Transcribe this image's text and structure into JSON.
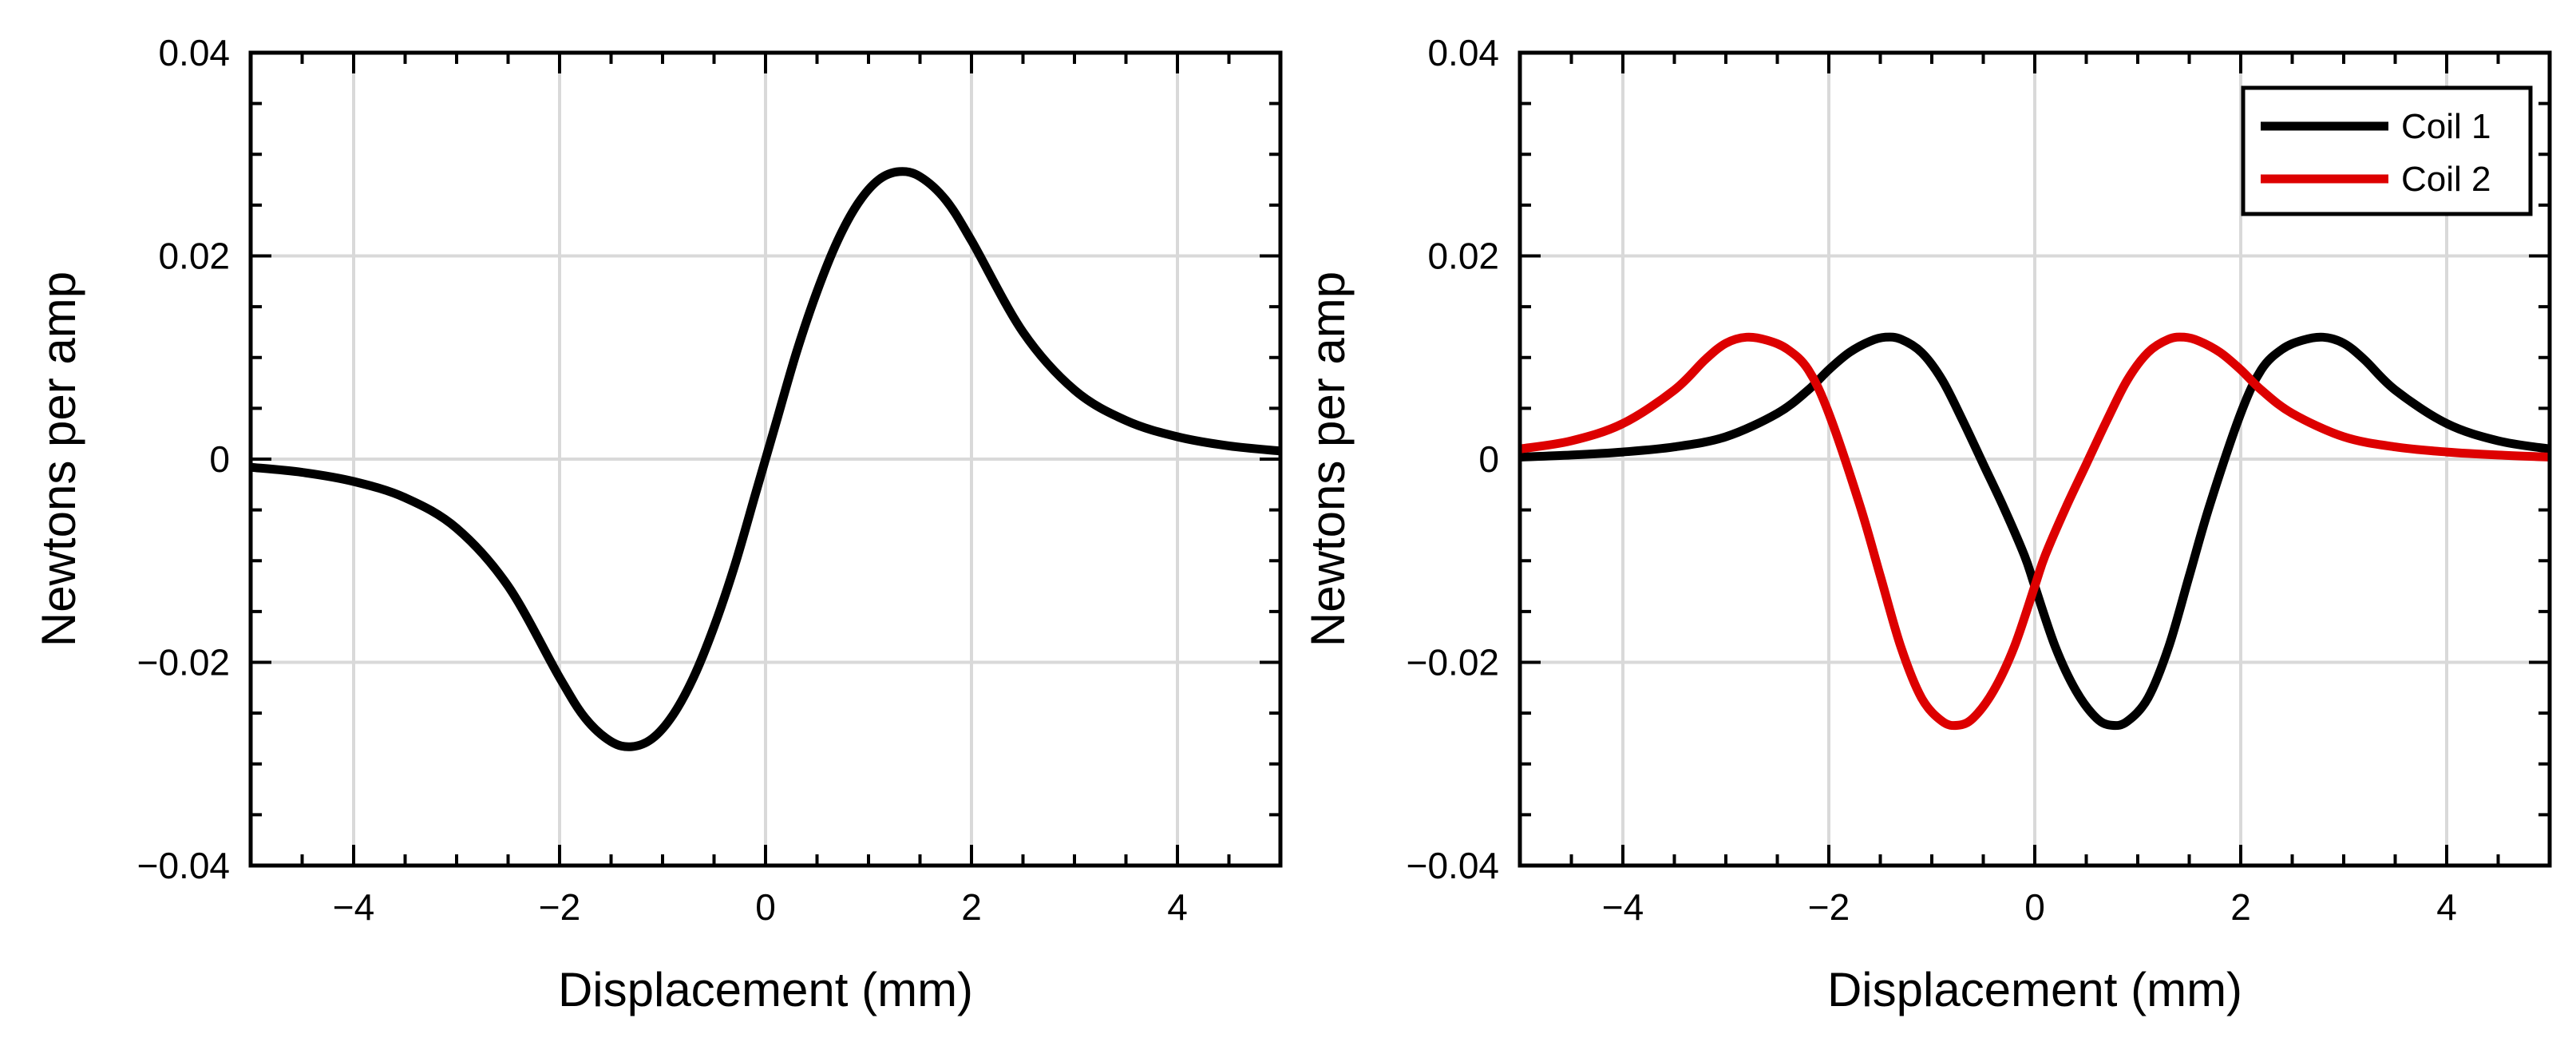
{
  "chart_data": [
    {
      "type": "line",
      "title": "",
      "xlabel": "Displacement (mm)",
      "ylabel": "Newtons per amp",
      "xlim": [
        -5,
        5
      ],
      "ylim": [
        -0.04,
        0.04
      ],
      "xticks": [
        -4,
        -2,
        0,
        2,
        4
      ],
      "xtick_labels": [
        "−4",
        "−2",
        "0",
        "2",
        "4"
      ],
      "yticks": [
        -0.04,
        -0.02,
        0,
        0.02,
        0.04
      ],
      "ytick_labels": [
        "−0.04",
        "−0.02",
        "0",
        "0.02",
        "0.04"
      ],
      "grid": true,
      "legend": null,
      "series": [
        {
          "name": "",
          "color": "#000000",
          "x": [
            -5.0,
            -4.5,
            -4.0,
            -3.5,
            -3.0,
            -2.5,
            -2.0,
            -1.75,
            -1.5,
            -1.3,
            -1.1,
            -0.9,
            -0.7,
            -0.5,
            -0.3,
            -0.1,
            0.0,
            0.1,
            0.3,
            0.5,
            0.7,
            0.9,
            1.1,
            1.3,
            1.5,
            1.75,
            2.0,
            2.5,
            3.0,
            3.5,
            4.0,
            4.5,
            5.0
          ],
          "y": [
            -0.0008,
            -0.0013,
            -0.0022,
            -0.0038,
            -0.0068,
            -0.0125,
            -0.0215,
            -0.0255,
            -0.0278,
            -0.0283,
            -0.0275,
            -0.0252,
            -0.0215,
            -0.0165,
            -0.0105,
            -0.0035,
            0.0,
            0.0035,
            0.0105,
            0.0165,
            0.0215,
            0.0252,
            0.0275,
            0.0283,
            0.0278,
            0.0255,
            0.0215,
            0.0125,
            0.0068,
            0.0038,
            0.0022,
            0.0013,
            0.0008
          ]
        }
      ]
    },
    {
      "type": "line",
      "title": "",
      "xlabel": "Displacement (mm)",
      "ylabel": "Newtons per amp",
      "xlim": [
        -5,
        5
      ],
      "ylim": [
        -0.04,
        0.04
      ],
      "xticks": [
        -4,
        -2,
        0,
        2,
        4
      ],
      "xtick_labels": [
        "−4",
        "−2",
        "0",
        "2",
        "4"
      ],
      "yticks": [
        -0.04,
        -0.02,
        0,
        0.02,
        0.04
      ],
      "ytick_labels": [
        "−0.04",
        "−0.02",
        "0",
        "0.02",
        "0.04"
      ],
      "grid": true,
      "legend": "top-right",
      "series": [
        {
          "name": "Coil 1",
          "color": "#000000",
          "x": [
            -5.0,
            -4.5,
            -4.0,
            -3.5,
            -3.0,
            -2.5,
            -2.2,
            -2.0,
            -1.8,
            -1.6,
            -1.45,
            -1.3,
            -1.1,
            -0.9,
            -0.7,
            -0.5,
            -0.3,
            -0.1,
            0.0,
            0.2,
            0.4,
            0.6,
            0.75,
            0.9,
            1.1,
            1.3,
            1.5,
            1.7,
            2.0,
            2.2,
            2.4,
            2.6,
            2.8,
            3.0,
            3.2,
            3.5,
            4.0,
            4.5,
            5.0
          ],
          "y": [
            0.0002,
            0.0004,
            0.0007,
            0.0012,
            0.0022,
            0.0045,
            0.0068,
            0.0088,
            0.0105,
            0.0116,
            0.012,
            0.0118,
            0.0105,
            0.0078,
            0.0038,
            -0.0005,
            -0.0048,
            -0.0095,
            -0.0125,
            -0.0185,
            -0.0228,
            -0.0255,
            -0.0262,
            -0.0258,
            -0.0235,
            -0.0185,
            -0.0115,
            -0.0045,
            0.0045,
            0.0088,
            0.0108,
            0.0117,
            0.012,
            0.0114,
            0.0098,
            0.0068,
            0.0035,
            0.0018,
            0.001
          ]
        },
        {
          "name": "Coil 2",
          "color": "#dd0000",
          "x": [
            -5.0,
            -4.5,
            -4.0,
            -3.5,
            -3.2,
            -3.0,
            -2.8,
            -2.6,
            -2.4,
            -2.2,
            -2.0,
            -1.7,
            -1.5,
            -1.3,
            -1.1,
            -0.9,
            -0.75,
            -0.6,
            -0.4,
            -0.2,
            0.0,
            0.1,
            0.3,
            0.5,
            0.7,
            0.9,
            1.1,
            1.3,
            1.45,
            1.6,
            1.8,
            2.0,
            2.2,
            2.5,
            3.0,
            3.5,
            4.0,
            4.5,
            5.0
          ],
          "y": [
            0.001,
            0.0018,
            0.0035,
            0.0068,
            0.0098,
            0.0114,
            0.012,
            0.0117,
            0.0108,
            0.0088,
            0.0045,
            -0.0045,
            -0.0115,
            -0.0185,
            -0.0235,
            -0.0258,
            -0.0262,
            -0.0255,
            -0.0228,
            -0.0185,
            -0.0125,
            -0.0095,
            -0.0048,
            -0.0005,
            0.0038,
            0.0078,
            0.0105,
            0.0118,
            0.012,
            0.0116,
            0.0105,
            0.0088,
            0.0068,
            0.0045,
            0.0022,
            0.0012,
            0.0007,
            0.0004,
            0.0002
          ]
        }
      ]
    }
  ]
}
